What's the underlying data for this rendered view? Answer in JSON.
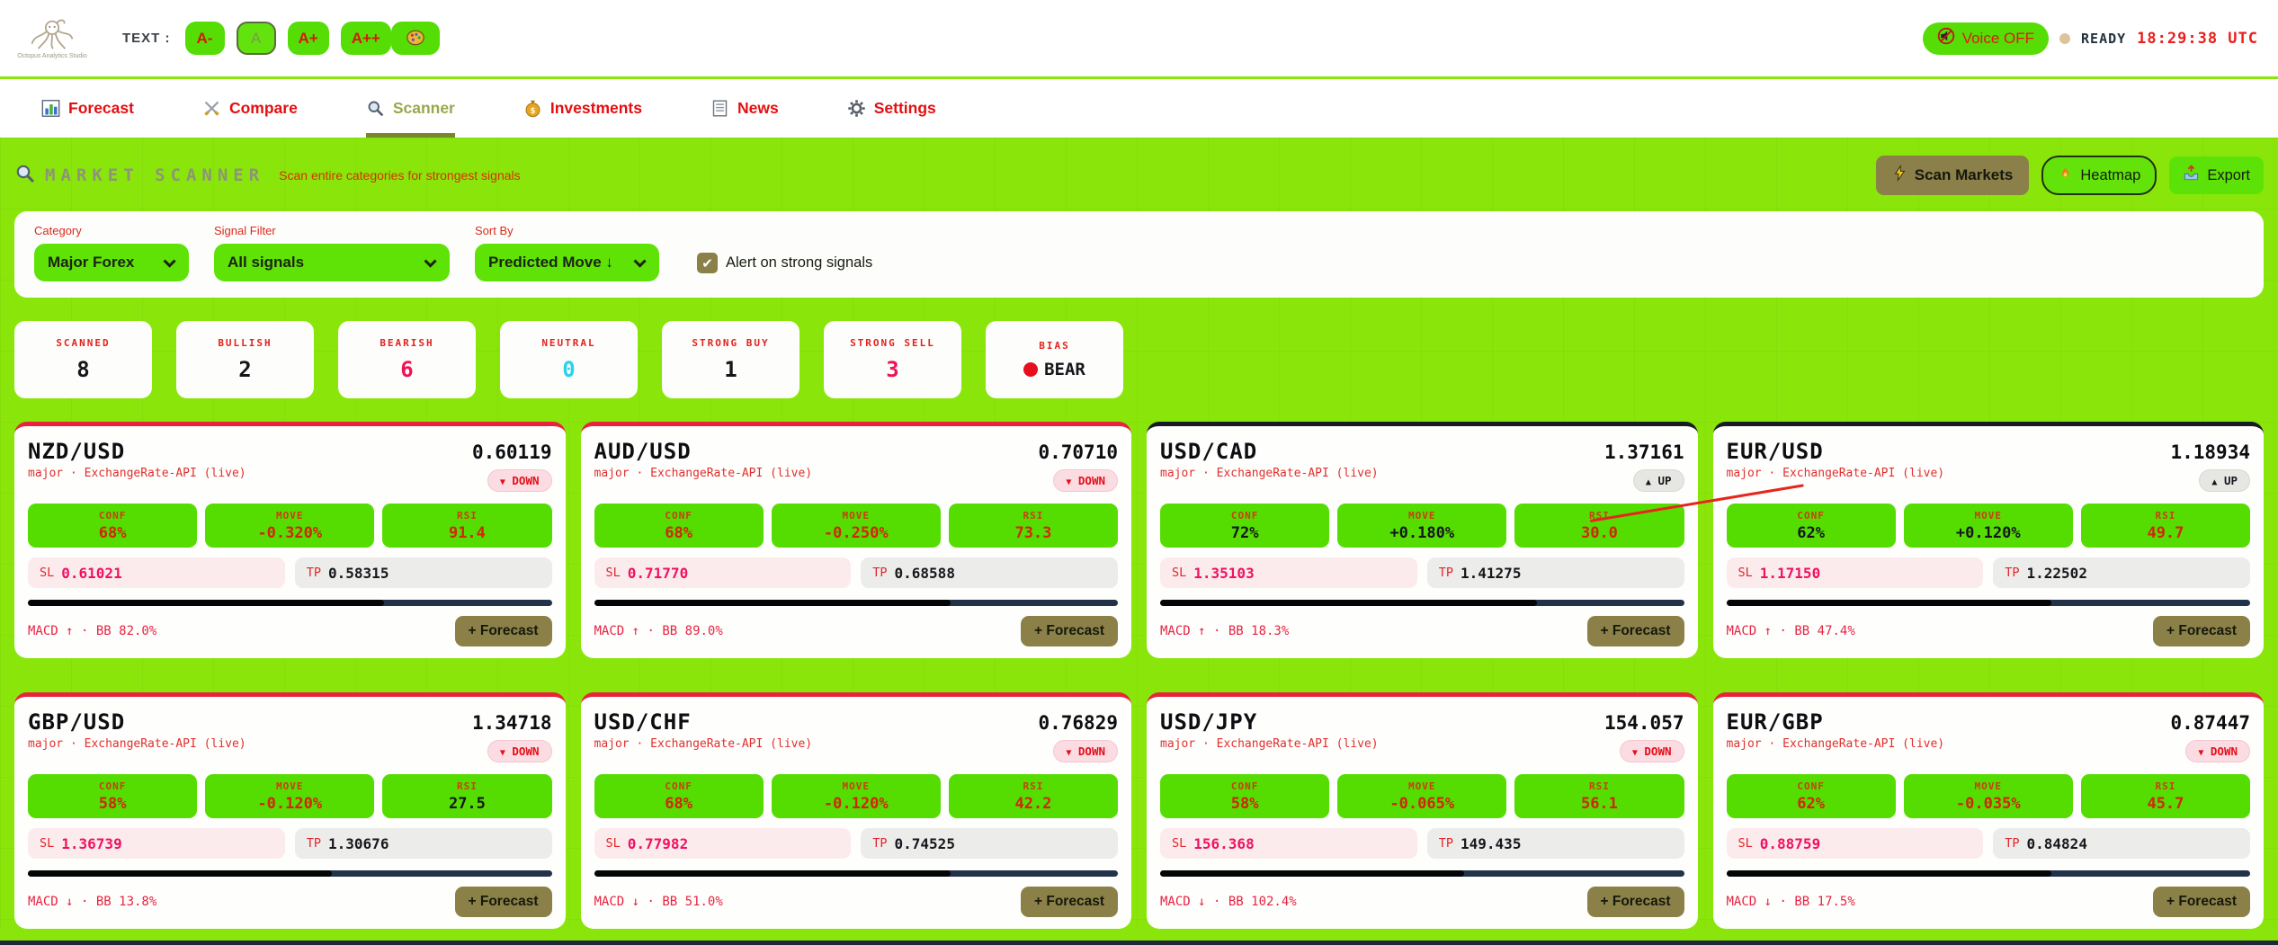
{
  "header": {
    "logo_caption": "Octopus Analytics Studio",
    "text_label": "TEXT :",
    "text_sizes": [
      {
        "label": "A-",
        "active": false
      },
      {
        "label": "A",
        "active": true
      },
      {
        "label": "A+",
        "active": false
      },
      {
        "label": "A++",
        "active": false
      }
    ],
    "voice_button": "Voice OFF",
    "status": "READY",
    "clock": "18:29:38 UTC"
  },
  "nav": {
    "tabs": [
      {
        "label": "Forecast",
        "icon": "bar-chart-icon",
        "active": false
      },
      {
        "label": "Compare",
        "icon": "crossed-swords-icon",
        "active": false
      },
      {
        "label": "Scanner",
        "icon": "magnifier-icon",
        "active": true
      },
      {
        "label": "Investments",
        "icon": "money-bag-icon",
        "active": false
      },
      {
        "label": "News",
        "icon": "newspaper-icon",
        "active": false
      },
      {
        "label": "Settings",
        "icon": "gear-icon",
        "active": false
      }
    ]
  },
  "scanner": {
    "title": "MARKET SCANNER",
    "subtitle": "Scan entire categories for strongest signals",
    "buttons": {
      "scan": "Scan Markets",
      "heatmap": "Heatmap",
      "export": "Export"
    }
  },
  "filters": {
    "category": {
      "label": "Category",
      "value": "Major Forex"
    },
    "signal": {
      "label": "Signal Filter",
      "value": "All signals"
    },
    "sort": {
      "label": "Sort By",
      "value": "Predicted Move ↓"
    },
    "alert": {
      "label": "Alert on strong signals",
      "checked": true
    }
  },
  "icons": {
    "check": "✔"
  },
  "colors": {
    "page_green": "#8ae60a",
    "control_green": "#55dd05",
    "olive": "#8b8148",
    "down_red": "#e8243c",
    "up_dark": "#171b23",
    "crimson": "#ef1353",
    "neutral_cyan": "#2bd2ee"
  },
  "stats": [
    {
      "label": "SCANNED",
      "value": "8",
      "color": "#15161a"
    },
    {
      "label": "BULLISH",
      "value": "2",
      "color": "#15161a"
    },
    {
      "label": "BEARISH",
      "value": "6",
      "color": "#ef1353"
    },
    {
      "label": "NEUTRAL",
      "value": "0",
      "color": "#2bd2ee"
    },
    {
      "label": "STRONG BUY",
      "value": "1",
      "color": "#15161a"
    },
    {
      "label": "STRONG SELL",
      "value": "3",
      "color": "#ef1353"
    },
    {
      "label": "BIAS",
      "value": "BEAR",
      "color": "#15161a",
      "dot": "#e60f1c"
    }
  ],
  "cards": [
    {
      "pair": "NZD/USD",
      "price": "0.60119",
      "meta": "major · ExchangeRate-API (live)",
      "signal": "DOWN",
      "signal_arrow": "▼",
      "metrics": [
        {
          "label": "CONF",
          "value": "68%",
          "color": "#d02603"
        },
        {
          "label": "MOVE",
          "value": "-0.320%",
          "color": "#d02603"
        },
        {
          "label": "RSI",
          "value": "91.4",
          "color": "#d02603"
        }
      ],
      "sl_label": "SL",
      "sl": "0.61021",
      "tp_label": "TP",
      "tp": "0.58315",
      "bar_pct": 68,
      "macd": "MACD ↑ · BB 82.0%",
      "forecast": "+ Forecast"
    },
    {
      "pair": "AUD/USD",
      "price": "0.70710",
      "meta": "major · ExchangeRate-API (live)",
      "signal": "DOWN",
      "signal_arrow": "▼",
      "metrics": [
        {
          "label": "CONF",
          "value": "68%",
          "color": "#d02603"
        },
        {
          "label": "MOVE",
          "value": "-0.250%",
          "color": "#d02603"
        },
        {
          "label": "RSI",
          "value": "73.3",
          "color": "#d02603"
        }
      ],
      "sl_label": "SL",
      "sl": "0.71770",
      "tp_label": "TP",
      "tp": "0.68588",
      "bar_pct": 68,
      "macd": "MACD ↑ · BB 89.0%",
      "forecast": "+ Forecast"
    },
    {
      "pair": "USD/CAD",
      "price": "1.37161",
      "meta": "major · ExchangeRate-API (live)",
      "signal": "UP",
      "signal_arrow": "▲",
      "metrics": [
        {
          "label": "CONF",
          "value": "72%",
          "color": "#14161c"
        },
        {
          "label": "MOVE",
          "value": "+0.180%",
          "color": "#14161c"
        },
        {
          "label": "RSI",
          "value": "30.0",
          "color": "#d02603"
        }
      ],
      "sl_label": "SL",
      "sl": "1.35103",
      "tp_label": "TP",
      "tp": "1.41275",
      "bar_pct": 72,
      "macd": "MACD ↑ · BB 18.3%",
      "forecast": "+ Forecast"
    },
    {
      "pair": "EUR/USD",
      "price": "1.18934",
      "meta": "major · ExchangeRate-API (live)",
      "signal": "UP",
      "signal_arrow": "▲",
      "metrics": [
        {
          "label": "CONF",
          "value": "62%",
          "color": "#14161c"
        },
        {
          "label": "MOVE",
          "value": "+0.120%",
          "color": "#14161c"
        },
        {
          "label": "RSI",
          "value": "49.7",
          "color": "#d02603"
        }
      ],
      "sl_label": "SL",
      "sl": "1.17150",
      "tp_label": "TP",
      "tp": "1.22502",
      "bar_pct": 62,
      "macd": "MACD ↑ · BB 47.4%",
      "forecast": "+ Forecast"
    },
    {
      "pair": "GBP/USD",
      "price": "1.34718",
      "meta": "major · ExchangeRate-API (live)",
      "signal": "DOWN",
      "signal_arrow": "▼",
      "metrics": [
        {
          "label": "CONF",
          "value": "58%",
          "color": "#d02603"
        },
        {
          "label": "MOVE",
          "value": "-0.120%",
          "color": "#d02603"
        },
        {
          "label": "RSI",
          "value": "27.5",
          "color": "#14161c"
        }
      ],
      "sl_label": "SL",
      "sl": "1.36739",
      "tp_label": "TP",
      "tp": "1.30676",
      "bar_pct": 58,
      "macd": "MACD ↓ · BB 13.8%",
      "forecast": "+ Forecast"
    },
    {
      "pair": "USD/CHF",
      "price": "0.76829",
      "meta": "major · ExchangeRate-API (live)",
      "signal": "DOWN",
      "signal_arrow": "▼",
      "metrics": [
        {
          "label": "CONF",
          "value": "68%",
          "color": "#d02603"
        },
        {
          "label": "MOVE",
          "value": "-0.120%",
          "color": "#d02603"
        },
        {
          "label": "RSI",
          "value": "42.2",
          "color": "#d02603"
        }
      ],
      "sl_label": "SL",
      "sl": "0.77982",
      "tp_label": "TP",
      "tp": "0.74525",
      "bar_pct": 68,
      "macd": "MACD ↓ · BB 51.0%",
      "forecast": "+ Forecast"
    },
    {
      "pair": "USD/JPY",
      "price": "154.057",
      "meta": "major · ExchangeRate-API (live)",
      "signal": "DOWN",
      "signal_arrow": "▼",
      "metrics": [
        {
          "label": "CONF",
          "value": "58%",
          "color": "#d02603"
        },
        {
          "label": "MOVE",
          "value": "-0.065%",
          "color": "#d02603"
        },
        {
          "label": "RSI",
          "value": "56.1",
          "color": "#d02603"
        }
      ],
      "sl_label": "SL",
      "sl": "156.368",
      "tp_label": "TP",
      "tp": "149.435",
      "bar_pct": 58,
      "macd": "MACD ↓ · BB 102.4%",
      "forecast": "+ Forecast"
    },
    {
      "pair": "EUR/GBP",
      "price": "0.87447",
      "meta": "major · ExchangeRate-API (live)",
      "signal": "DOWN",
      "signal_arrow": "▼",
      "metrics": [
        {
          "label": "CONF",
          "value": "62%",
          "color": "#d02603"
        },
        {
          "label": "MOVE",
          "value": "-0.035%",
          "color": "#d02603"
        },
        {
          "label": "RSI",
          "value": "45.7",
          "color": "#d02603"
        }
      ],
      "sl_label": "SL",
      "sl": "0.88759",
      "tp_label": "TP",
      "tp": "0.84824",
      "bar_pct": 62,
      "macd": "MACD ↓ · BB 17.5%",
      "forecast": "+ Forecast"
    }
  ]
}
